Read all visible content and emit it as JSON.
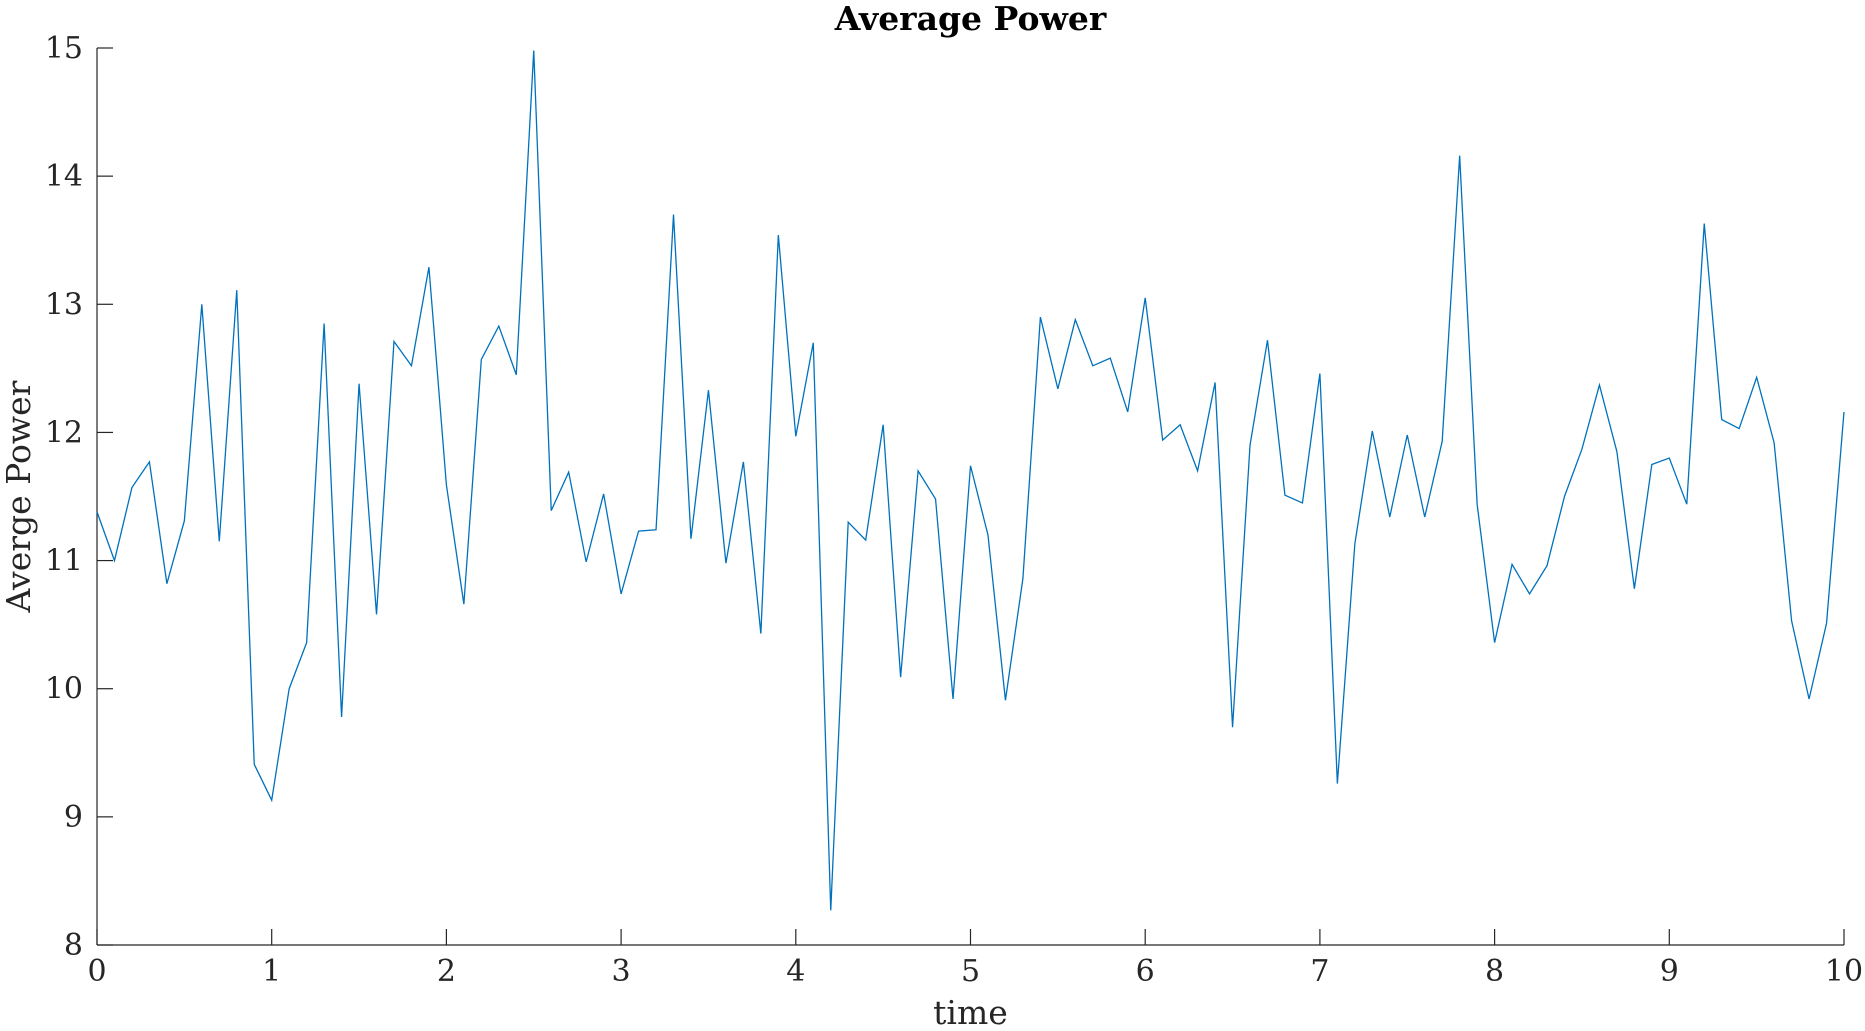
{
  "chart_data": {
    "type": "line",
    "title": "Average Power",
    "xlabel": "time",
    "ylabel": "Averge Power",
    "xlim": [
      0,
      10
    ],
    "ylim": [
      8,
      15
    ],
    "xticks": [
      "0",
      "1",
      "2",
      "3",
      "4",
      "5",
      "6",
      "7",
      "8",
      "9",
      "10"
    ],
    "yticks": [
      "8",
      "9",
      "10",
      "11",
      "12",
      "13",
      "14",
      "15"
    ],
    "grid": false,
    "line_color": "#0072BD",
    "series": [
      {
        "x": [
          0,
          0.1,
          0.2,
          0.3,
          0.4,
          0.5,
          0.6,
          0.7,
          0.8,
          0.9,
          1,
          1.1,
          1.2,
          1.3,
          1.4,
          1.5,
          1.6,
          1.7,
          1.8,
          1.9,
          2,
          2.1,
          2.2,
          2.3,
          2.4,
          2.5,
          2.6,
          2.7,
          2.8,
          2.9,
          3,
          3.1,
          3.2,
          3.3,
          3.4,
          3.5,
          3.6,
          3.7,
          3.8,
          3.9,
          4,
          4.1,
          4.2,
          4.3,
          4.4,
          4.5,
          4.6,
          4.7,
          4.8,
          4.9,
          5,
          5.1,
          5.2,
          5.3,
          5.4,
          5.5,
          5.6,
          5.7,
          5.8,
          5.9,
          6,
          6.1,
          6.2,
          6.3,
          6.4,
          6.5,
          6.6,
          6.7,
          6.8,
          6.9,
          7,
          7.1,
          7.2,
          7.3,
          7.4,
          7.5,
          7.6,
          7.7,
          7.8,
          7.9,
          8,
          8.1,
          8.2,
          8.3,
          8.4,
          8.5,
          8.6,
          8.7,
          8.8,
          8.9,
          9,
          9.1,
          9.2,
          9.3,
          9.4,
          9.5,
          9.6,
          9.7,
          9.8,
          9.9,
          10
        ],
        "y": [
          11.38,
          11.0,
          11.57,
          11.77,
          10.82,
          11.31,
          13.0,
          11.15,
          13.11,
          9.41,
          9.13,
          10.0,
          10.36,
          12.85,
          9.78,
          12.38,
          10.58,
          12.71,
          12.52,
          13.29,
          11.59,
          10.66,
          12.57,
          12.83,
          12.45,
          14.98,
          11.39,
          11.69,
          10.99,
          11.52,
          10.74,
          11.23,
          11.24,
          13.7,
          11.17,
          12.33,
          10.98,
          11.77,
          10.43,
          13.54,
          11.97,
          12.7,
          8.27,
          11.3,
          11.16,
          12.06,
          10.09,
          11.7,
          11.48,
          9.92,
          11.74,
          11.2,
          9.91,
          10.86,
          12.9,
          12.34,
          12.88,
          12.52,
          12.58,
          12.16,
          13.05,
          11.94,
          12.06,
          11.7,
          12.39,
          9.7,
          11.9,
          12.72,
          11.51,
          11.45,
          12.46,
          9.26,
          11.13,
          12.01,
          11.34,
          11.98,
          11.34,
          11.93,
          14.16,
          11.44,
          10.36,
          10.97,
          10.74,
          10.96,
          11.5,
          11.87,
          12.37,
          11.85,
          10.78,
          11.75,
          11.8,
          11.44,
          13.63,
          12.1,
          12.03,
          12.43,
          11.92,
          10.53,
          9.92,
          10.51,
          12.16
        ]
      }
    ]
  }
}
